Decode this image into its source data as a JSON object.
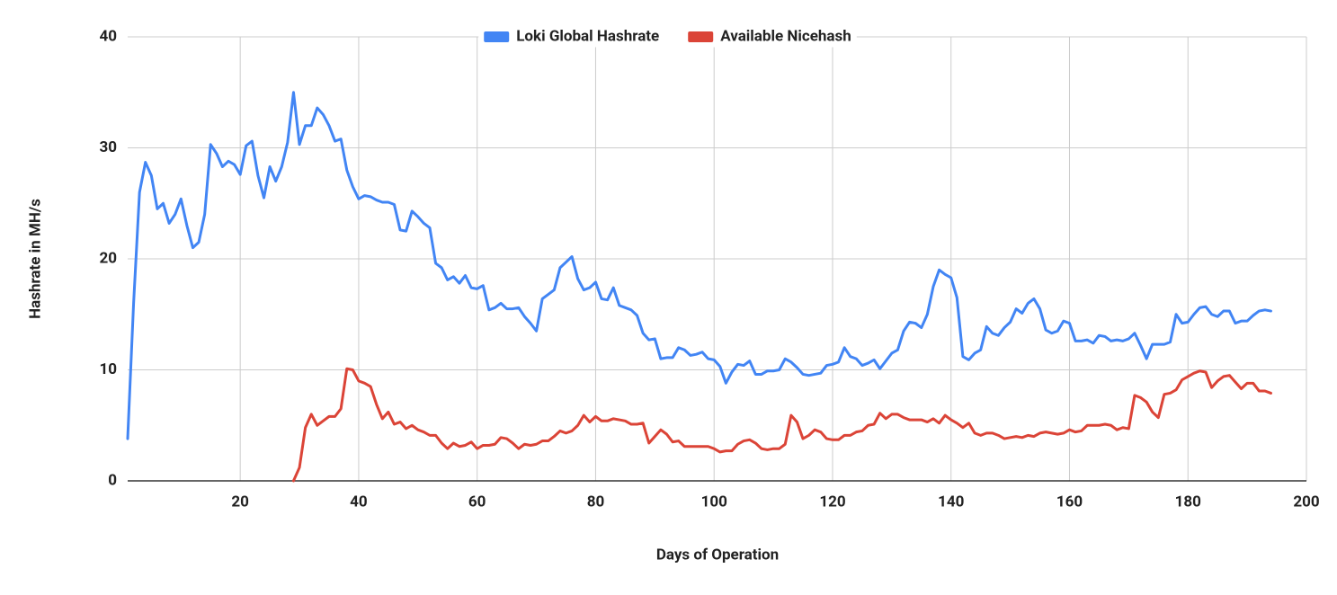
{
  "chart_data": {
    "type": "line",
    "x_label": "Days of Operation",
    "y_label": "Hashrate in MH/s",
    "legend": "top",
    "grid": true,
    "xlim": [
      1,
      200
    ],
    "xticks": [
      20,
      40,
      60,
      80,
      100,
      120,
      140,
      160,
      180,
      200
    ],
    "ylim": [
      0,
      40
    ],
    "yticks": [
      0,
      10,
      20,
      30,
      40
    ],
    "x": [
      1,
      2,
      3,
      4,
      5,
      6,
      7,
      8,
      9,
      10,
      11,
      12,
      13,
      14,
      15,
      16,
      17,
      18,
      19,
      20,
      21,
      22,
      23,
      24,
      25,
      26,
      27,
      28,
      29,
      30,
      31,
      32,
      33,
      34,
      35,
      36,
      37,
      38,
      39,
      40,
      41,
      42,
      43,
      44,
      45,
      46,
      47,
      48,
      49,
      50,
      51,
      52,
      53,
      54,
      55,
      56,
      57,
      58,
      59,
      60,
      61,
      62,
      63,
      64,
      65,
      66,
      67,
      68,
      69,
      70,
      71,
      72,
      73,
      74,
      75,
      76,
      77,
      78,
      79,
      80,
      81,
      82,
      83,
      84,
      85,
      86,
      87,
      88,
      89,
      90,
      91,
      92,
      93,
      94,
      95,
      96,
      97,
      98,
      99,
      100,
      101,
      102,
      103,
      104,
      105,
      106,
      107,
      108,
      109,
      110,
      111,
      112,
      113,
      114,
      115,
      116,
      117,
      118,
      119,
      120,
      121,
      122,
      123,
      124,
      125,
      126,
      127,
      128,
      129,
      130,
      131,
      132,
      133,
      134,
      135,
      136,
      137,
      138,
      139,
      140,
      141,
      142,
      143,
      144,
      145,
      146,
      147,
      148,
      149,
      150,
      151,
      152,
      153,
      154,
      155,
      156,
      157,
      158,
      159,
      160,
      161,
      162,
      163,
      164,
      165,
      166,
      167,
      168,
      169,
      170,
      171,
      172,
      173,
      174,
      175,
      176,
      177,
      178,
      179,
      180,
      181,
      182,
      183,
      184,
      185,
      186,
      187,
      188,
      189,
      190,
      191,
      192,
      193,
      194
    ],
    "series": [
      {
        "name": "Loki Global Hashrate",
        "color": "#4285f4",
        "values": [
          3.8,
          16,
          26,
          28.7,
          27.5,
          24.5,
          25,
          23.2,
          24,
          25.4,
          23,
          21,
          21.5,
          24,
          30.3,
          29.5,
          28.3,
          28.8,
          28.5,
          27.6,
          30.2,
          30.6,
          27.5,
          25.5,
          28.3,
          27,
          28.3,
          30.5,
          35,
          30.3,
          32,
          32,
          33.6,
          33,
          32,
          30.6,
          30.8,
          28,
          26.5,
          25.4,
          25.7,
          25.6,
          25.3,
          25.1,
          25.1,
          24.9,
          22.6,
          22.5,
          24.3,
          23.8,
          23.2,
          22.8,
          19.6,
          19.2,
          18.1,
          18.4,
          17.8,
          18.5,
          17.4,
          17.3,
          17.6,
          15.4,
          15.6,
          16,
          15.5,
          15.5,
          15.6,
          14.8,
          14.2,
          13.5,
          16.4,
          16.8,
          17.2,
          19.2,
          19.7,
          20.2,
          18.2,
          17.2,
          17.4,
          17.9,
          16.4,
          16.3,
          17.4,
          15.8,
          15.6,
          15.4,
          14.9,
          13.3,
          12.7,
          12.8,
          11,
          11.1,
          11.1,
          12,
          11.8,
          11.3,
          11.4,
          11.6,
          11,
          10.9,
          10.3,
          8.8,
          9.8,
          10.5,
          10.4,
          10.8,
          9.6,
          9.6,
          9.9,
          9.9,
          10,
          11,
          10.7,
          10.2,
          9.6,
          9.5,
          9.6,
          9.7,
          10.4,
          10.5,
          10.7,
          12,
          11.2,
          11,
          10.4,
          10.6,
          10.9,
          10.1,
          10.8,
          11.5,
          11.8,
          13.5,
          14.3,
          14.2,
          13.8,
          15,
          17.5,
          19,
          18.6,
          18.3,
          16.5,
          11.2,
          10.9,
          11.5,
          11.8,
          13.9,
          13.3,
          13.1,
          13.8,
          14.3,
          15.5,
          15.1,
          16,
          16.4,
          15.5,
          13.6,
          13.3,
          13.5,
          14.4,
          14.2,
          12.6,
          12.6,
          12.7,
          12.4,
          13.1,
          13,
          12.6,
          12.7,
          12.6,
          12.8,
          13.3,
          12.2,
          11,
          12.3,
          12.3,
          12.3,
          12.5,
          15,
          14.2,
          14.3,
          15,
          15.6,
          15.7,
          15,
          14.8,
          15.3,
          15.3,
          14.2,
          14.4,
          14.4,
          14.9,
          15.3,
          15.4,
          15.3
        ]
      },
      {
        "name": "Available Nicehash",
        "color": "#db4437",
        "values": [
          null,
          null,
          null,
          null,
          null,
          null,
          null,
          null,
          null,
          null,
          null,
          null,
          null,
          null,
          null,
          null,
          null,
          null,
          null,
          null,
          null,
          null,
          null,
          null,
          null,
          null,
          null,
          null,
          0,
          1.2,
          4.8,
          6,
          5,
          5.4,
          5.8,
          5.8,
          6.5,
          10.1,
          10,
          9,
          8.8,
          8.5,
          6.9,
          5.6,
          6.2,
          5.1,
          5.3,
          4.7,
          5,
          4.6,
          4.4,
          4.1,
          4.1,
          3.4,
          2.9,
          3.4,
          3.1,
          3.2,
          3.5,
          2.9,
          3.2,
          3.2,
          3.3,
          3.9,
          3.8,
          3.4,
          2.9,
          3.3,
          3.2,
          3.3,
          3.6,
          3.6,
          4,
          4.5,
          4.3,
          4.5,
          5,
          5.9,
          5.3,
          5.8,
          5.4,
          5.4,
          5.6,
          5.5,
          5.4,
          5.1,
          5.1,
          5.2,
          3.4,
          4,
          4.6,
          4.2,
          3.5,
          3.6,
          3.1,
          3.1,
          3.1,
          3.1,
          3.1,
          2.9,
          2.6,
          2.7,
          2.7,
          3.3,
          3.6,
          3.7,
          3.4,
          2.9,
          2.8,
          2.9,
          2.9,
          3.3,
          5.9,
          5.3,
          3.8,
          4.1,
          4.6,
          4.4,
          3.8,
          3.7,
          3.7,
          4.1,
          4.1,
          4.4,
          4.5,
          5,
          5.1,
          6.1,
          5.6,
          6,
          6,
          5.7,
          5.5,
          5.5,
          5.5,
          5.3,
          5.6,
          5.2,
          5.9,
          5.5,
          5.2,
          4.8,
          5.2,
          4.3,
          4.1,
          4.3,
          4.3,
          4.1,
          3.8,
          3.9,
          4,
          3.9,
          4.1,
          4,
          4.3,
          4.4,
          4.3,
          4.2,
          4.3,
          4.6,
          4.4,
          4.5,
          5,
          5,
          5,
          5.1,
          5,
          4.6,
          4.8,
          4.7,
          7.7,
          7.5,
          7.1,
          6.2,
          5.7,
          7.8,
          7.9,
          8.2,
          9.1,
          9.4,
          9.7,
          9.9,
          9.8,
          8.4,
          9,
          9.4,
          9.5,
          8.9,
          8.3,
          8.8,
          8.8,
          8.1,
          8.1,
          7.9
        ]
      }
    ]
  }
}
